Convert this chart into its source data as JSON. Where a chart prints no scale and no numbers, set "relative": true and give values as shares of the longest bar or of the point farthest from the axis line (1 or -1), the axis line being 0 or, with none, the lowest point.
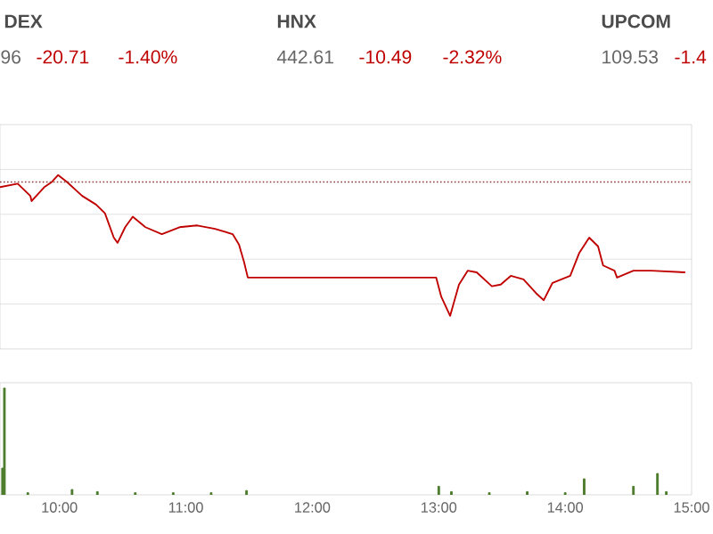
{
  "chart_data": [
    {
      "type": "line",
      "relative": true,
      "xlim": [
        9.53,
        15.0
      ],
      "tick_labels": false,
      "grid": "y",
      "annotations": [
        "DEX",
        "96",
        "-20.71",
        "-1.40%",
        "HNX",
        "442.61",
        "-10.49",
        "-2.32%",
        "UPCOM",
        "109.53",
        "-1.4"
      ],
      "ref_lines": [
        {
          "axis": "y",
          "value": 0.96,
          "color": "#8b3a3a",
          "line_style": "dotted"
        }
      ],
      "series": [
        {
          "color": "#c00000",
          "x": [
            9.53,
            9.67,
            9.77,
            9.78,
            9.88,
            9.94,
            9.99,
            10.06,
            10.18,
            10.29,
            10.36,
            10.43,
            10.46,
            10.52,
            10.58,
            10.68,
            10.81,
            10.95,
            11.09,
            11.23,
            11.37,
            11.42,
            11.46,
            11.49,
            12.98,
            13.02,
            13.09,
            13.16,
            13.23,
            13.3,
            13.42,
            13.49,
            13.57,
            13.67,
            13.77,
            13.83,
            13.9,
            14.04,
            14.11,
            14.19,
            14.26,
            14.3,
            14.39,
            14.41,
            14.54,
            14.68,
            14.95
          ],
          "values": [
            0.93,
            0.95,
            0.88,
            0.85,
            0.93,
            0.96,
            1.0,
            0.96,
            0.88,
            0.83,
            0.78,
            0.64,
            0.61,
            0.7,
            0.76,
            0.7,
            0.66,
            0.7,
            0.71,
            0.69,
            0.66,
            0.6,
            0.5,
            0.41,
            0.41,
            0.3,
            0.19,
            0.37,
            0.45,
            0.44,
            0.36,
            0.37,
            0.42,
            0.4,
            0.32,
            0.28,
            0.38,
            0.42,
            0.55,
            0.64,
            0.59,
            0.48,
            0.45,
            0.41,
            0.45,
            0.45,
            0.44
          ]
        }
      ]
    },
    {
      "type": "bar",
      "relative": true,
      "xlim": [
        9.53,
        15.0
      ],
      "tick_labels": "x",
      "xticks": [
        {
          "value": 10,
          "label": "10:00"
        },
        {
          "value": 11,
          "label": "11:00"
        },
        {
          "value": 12,
          "label": "12:00"
        },
        {
          "value": 13,
          "label": "13:00"
        },
        {
          "value": 14,
          "label": "14:00"
        },
        {
          "value": 15,
          "label": "15:00"
        }
      ],
      "series": [
        {
          "color": "#4a7a2a",
          "x": [
            9.55,
            9.565,
            9.75,
            10.1,
            10.3,
            10.6,
            10.9,
            11.2,
            11.48,
            13.0,
            13.1,
            13.4,
            13.7,
            14.0,
            14.15,
            14.54,
            14.73,
            14.8
          ],
          "values": [
            0.25,
            1.0,
            0.02,
            0.05,
            0.03,
            0.02,
            0.02,
            0.02,
            0.04,
            0.08,
            0.03,
            0.02,
            0.03,
            0.02,
            0.15,
            0.08,
            0.2,
            0.03
          ]
        }
      ]
    }
  ]
}
